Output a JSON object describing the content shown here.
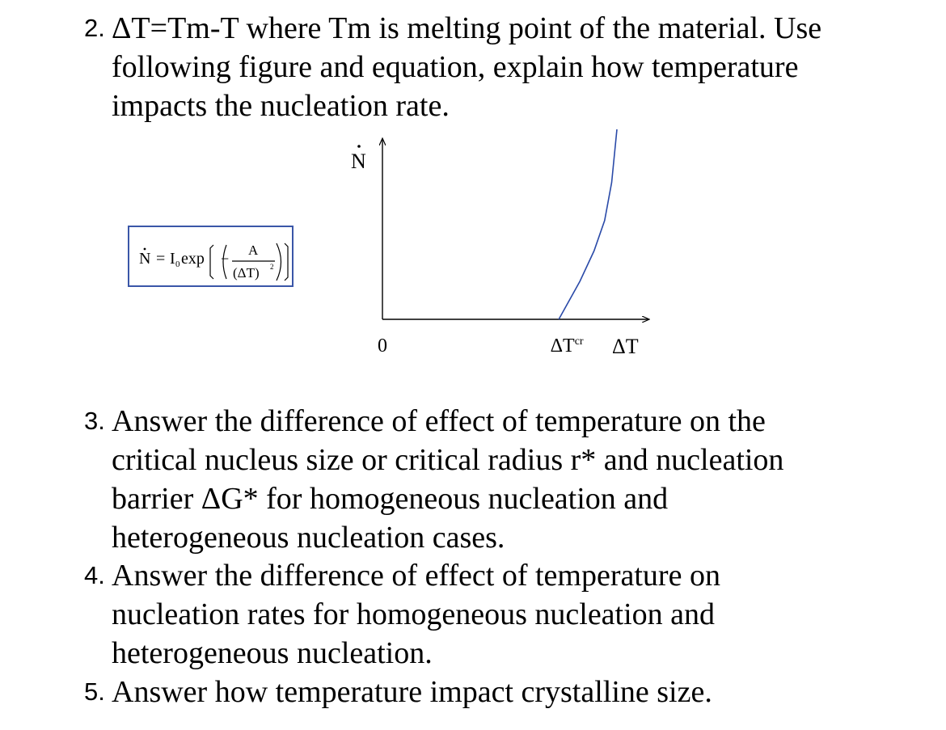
{
  "questions": [
    {
      "number": "2.",
      "lines": [
        "ΔT=Tm-T where Tm is melting point of the material.  Use",
        "following figure and equation, explain how temperature",
        "impacts the nucleation rate."
      ]
    },
    {
      "number": "3.",
      "lines": [
        "Answer the difference of effect of temperature on the",
        "critical nucleus size or critical radius r* and nucleation",
        "barrier ΔG* for homogeneous nucleation and",
        "heterogeneous nucleation cases."
      ]
    },
    {
      "number": "4.",
      "lines": [
        "Answer the difference of effect of temperature on",
        "nucleation rates for homogeneous nucleation and",
        "heterogeneous nucleation."
      ]
    },
    {
      "number": "5.",
      "lines": [
        "Answer how temperature impact crystalline size."
      ]
    }
  ],
  "formula": {
    "lhs": "N",
    "eq": "=",
    "prefactor": "I",
    "prefactor_sub": "0",
    "func": "exp",
    "minus": "−",
    "numerator": "A",
    "denominator": "(ΔT)",
    "denominator_exp": "2",
    "border_color": "#3a56a8"
  },
  "chart_data": {
    "type": "line",
    "ylabel": "N",
    "xlabel": "ΔT",
    "x_ticks": [
      {
        "value": 0,
        "label": "0"
      },
      {
        "value": 1,
        "label": "ΔT",
        "sup": "cr"
      }
    ],
    "xlim": [
      0,
      1.55
    ],
    "ylim": [
      0,
      1
    ],
    "series": [
      {
        "x": [
          1.0,
          1.12,
          1.2,
          1.26,
          1.3,
          1.33
        ],
        "y": [
          0.0,
          0.2,
          0.36,
          0.52,
          0.72,
          1.0
        ]
      }
    ],
    "line_color": "#2a4aa8",
    "grid": false
  }
}
